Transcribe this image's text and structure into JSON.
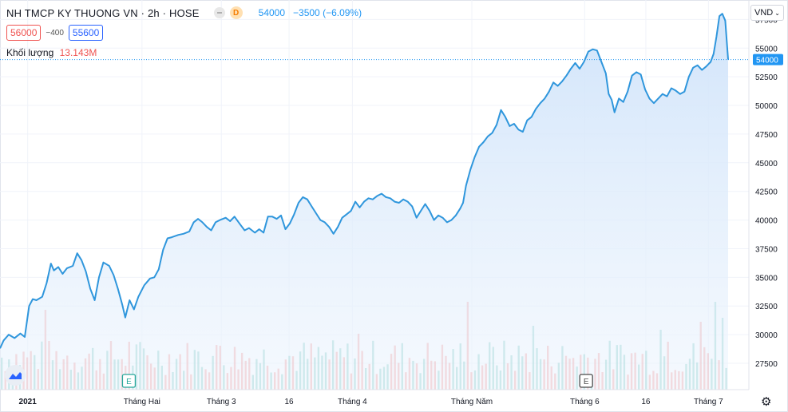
{
  "header": {
    "title": "NH TMCP KY THUONG VN · 2h · HOSE",
    "d_badge": "D",
    "last": "54000",
    "change": "−3500 (−6.09%)"
  },
  "quote": {
    "bid": "56000",
    "spread": "−400",
    "ask": "55600"
  },
  "volume": {
    "label": "Khối lượng",
    "value": "13.143M"
  },
  "currency": "VND",
  "colors": {
    "line": "#2f96dc",
    "fill": "#dcebfb",
    "up": "#26a69a",
    "down": "#ef5350",
    "price_tag": "#2196f3"
  },
  "chart_data": {
    "type": "area",
    "y_ticks": [
      27500,
      30000,
      32500,
      35000,
      37500,
      40000,
      42500,
      45000,
      47500,
      50000,
      52500,
      55000,
      57500
    ],
    "ylim": [
      25200,
      59200
    ],
    "x_labels": [
      "2021",
      "Tháng Hai",
      "Tháng 3",
      "16",
      "Tháng 4",
      "Tháng Năm",
      "Tháng 6",
      "16",
      "Tháng 7"
    ],
    "last_price": 54000,
    "event_markers": [
      {
        "label": "E",
        "date_index": 0.177
      },
      {
        "label": "E",
        "date_index": 0.805
      }
    ],
    "price_series": [
      [
        0.0,
        28800
      ],
      [
        0.005,
        29500
      ],
      [
        0.012,
        30000
      ],
      [
        0.02,
        29700
      ],
      [
        0.028,
        30100
      ],
      [
        0.034,
        29800
      ],
      [
        0.04,
        32500
      ],
      [
        0.045,
        33100
      ],
      [
        0.05,
        33000
      ],
      [
        0.058,
        33300
      ],
      [
        0.064,
        34500
      ],
      [
        0.07,
        36200
      ],
      [
        0.074,
        35600
      ],
      [
        0.08,
        35900
      ],
      [
        0.086,
        35300
      ],
      [
        0.092,
        35800
      ],
      [
        0.1,
        36000
      ],
      [
        0.106,
        37100
      ],
      [
        0.112,
        36500
      ],
      [
        0.118,
        35500
      ],
      [
        0.124,
        34000
      ],
      [
        0.13,
        33000
      ],
      [
        0.136,
        35000
      ],
      [
        0.142,
        36300
      ],
      [
        0.15,
        36000
      ],
      [
        0.156,
        35200
      ],
      [
        0.162,
        34000
      ],
      [
        0.168,
        32600
      ],
      [
        0.172,
        31500
      ],
      [
        0.178,
        33000
      ],
      [
        0.184,
        32200
      ],
      [
        0.19,
        33300
      ],
      [
        0.198,
        34300
      ],
      [
        0.206,
        34900
      ],
      [
        0.212,
        35000
      ],
      [
        0.218,
        35700
      ],
      [
        0.224,
        37400
      ],
      [
        0.23,
        38400
      ],
      [
        0.236,
        38500
      ],
      [
        0.245,
        38700
      ],
      [
        0.252,
        38800
      ],
      [
        0.26,
        39000
      ],
      [
        0.266,
        39800
      ],
      [
        0.272,
        40100
      ],
      [
        0.278,
        39800
      ],
      [
        0.284,
        39400
      ],
      [
        0.29,
        39100
      ],
      [
        0.296,
        39800
      ],
      [
        0.302,
        40000
      ],
      [
        0.31,
        40200
      ],
      [
        0.316,
        39900
      ],
      [
        0.322,
        40300
      ],
      [
        0.33,
        39600
      ],
      [
        0.336,
        39100
      ],
      [
        0.342,
        39300
      ],
      [
        0.35,
        38900
      ],
      [
        0.356,
        39200
      ],
      [
        0.362,
        38900
      ],
      [
        0.368,
        40300
      ],
      [
        0.374,
        40300
      ],
      [
        0.38,
        40100
      ],
      [
        0.386,
        40400
      ],
      [
        0.392,
        39200
      ],
      [
        0.398,
        39700
      ],
      [
        0.404,
        40500
      ],
      [
        0.41,
        41500
      ],
      [
        0.416,
        42000
      ],
      [
        0.422,
        41800
      ],
      [
        0.428,
        41200
      ],
      [
        0.434,
        40600
      ],
      [
        0.44,
        40000
      ],
      [
        0.446,
        39800
      ],
      [
        0.452,
        39400
      ],
      [
        0.458,
        38800
      ],
      [
        0.464,
        39400
      ],
      [
        0.47,
        40200
      ],
      [
        0.476,
        40500
      ],
      [
        0.482,
        40800
      ],
      [
        0.488,
        41600
      ],
      [
        0.494,
        41100
      ],
      [
        0.5,
        41600
      ],
      [
        0.506,
        41900
      ],
      [
        0.512,
        41800
      ],
      [
        0.518,
        42100
      ],
      [
        0.524,
        42300
      ],
      [
        0.53,
        42000
      ],
      [
        0.536,
        41900
      ],
      [
        0.542,
        41600
      ],
      [
        0.548,
        41500
      ],
      [
        0.554,
        41800
      ],
      [
        0.56,
        41600
      ],
      [
        0.566,
        41200
      ],
      [
        0.572,
        40200
      ],
      [
        0.578,
        40800
      ],
      [
        0.584,
        41400
      ],
      [
        0.59,
        40800
      ],
      [
        0.596,
        40000
      ],
      [
        0.602,
        40400
      ],
      [
        0.608,
        40200
      ],
      [
        0.614,
        39800
      ],
      [
        0.62,
        40000
      ],
      [
        0.626,
        40400
      ],
      [
        0.632,
        41000
      ],
      [
        0.636,
        41500
      ],
      [
        0.64,
        43000
      ],
      [
        0.646,
        44400
      ],
      [
        0.652,
        45500
      ],
      [
        0.658,
        46400
      ],
      [
        0.664,
        46800
      ],
      [
        0.67,
        47300
      ],
      [
        0.676,
        47600
      ],
      [
        0.682,
        48300
      ],
      [
        0.688,
        49600
      ],
      [
        0.694,
        49000
      ],
      [
        0.7,
        48200
      ],
      [
        0.706,
        48400
      ],
      [
        0.712,
        47900
      ],
      [
        0.718,
        47700
      ],
      [
        0.724,
        48700
      ],
      [
        0.73,
        49000
      ],
      [
        0.736,
        49700
      ],
      [
        0.742,
        50200
      ],
      [
        0.748,
        50600
      ],
      [
        0.754,
        51200
      ],
      [
        0.76,
        52000
      ],
      [
        0.766,
        51700
      ],
      [
        0.772,
        52100
      ],
      [
        0.778,
        52600
      ],
      [
        0.784,
        53200
      ],
      [
        0.79,
        53700
      ],
      [
        0.796,
        53200
      ],
      [
        0.802,
        53800
      ],
      [
        0.808,
        54700
      ],
      [
        0.814,
        54900
      ],
      [
        0.82,
        54800
      ],
      [
        0.826,
        53800
      ],
      [
        0.832,
        52800
      ],
      [
        0.836,
        51000
      ],
      [
        0.84,
        50500
      ],
      [
        0.844,
        49400
      ],
      [
        0.85,
        50600
      ],
      [
        0.856,
        50300
      ],
      [
        0.862,
        51200
      ],
      [
        0.868,
        52600
      ],
      [
        0.874,
        52900
      ],
      [
        0.88,
        52700
      ],
      [
        0.886,
        51400
      ],
      [
        0.892,
        50600
      ],
      [
        0.898,
        50200
      ],
      [
        0.904,
        50600
      ],
      [
        0.91,
        51000
      ],
      [
        0.916,
        50800
      ],
      [
        0.922,
        51500
      ],
      [
        0.928,
        51300
      ],
      [
        0.934,
        51000
      ],
      [
        0.94,
        51200
      ],
      [
        0.946,
        52500
      ],
      [
        0.952,
        53300
      ],
      [
        0.958,
        53500
      ],
      [
        0.964,
        53100
      ],
      [
        0.97,
        53400
      ],
      [
        0.976,
        53800
      ],
      [
        0.98,
        54500
      ],
      [
        0.984,
        56000
      ],
      [
        0.988,
        57800
      ],
      [
        0.992,
        58000
      ],
      [
        0.996,
        57400
      ],
      [
        1.0,
        54000
      ]
    ]
  }
}
